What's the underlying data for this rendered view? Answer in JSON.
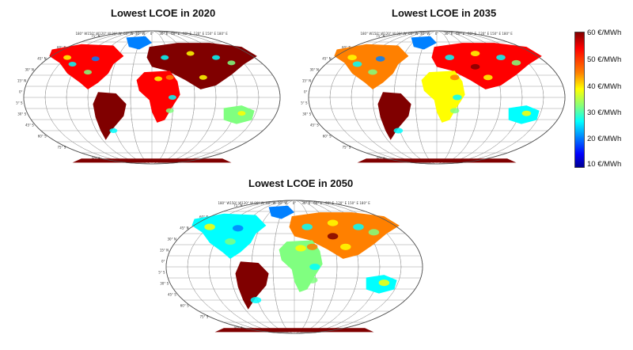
{
  "figure": {
    "panels": [
      {
        "title": "Lowest LCOE in 2020",
        "year": "2020"
      },
      {
        "title": "Lowest LCOE in 2035",
        "year": "2035"
      },
      {
        "title": "Lowest LCOE in 2050",
        "year": "2050"
      }
    ],
    "longitude_labels": [
      "180° W",
      "150° W",
      "120° W",
      "90° W",
      "60° W",
      "30° W",
      "0°",
      "30° E",
      "60° E",
      "90° E",
      "120° E",
      "150° E",
      "180° E"
    ],
    "latitude_labels": [
      "75° N",
      "60° N",
      "45° N",
      "30° N",
      "15° N",
      "0°",
      "15° S",
      "30° S",
      "45° S",
      "60° S",
      "75° S",
      "90° S"
    ]
  },
  "colorbar": {
    "labels": [
      "60 €/MWh",
      "50 €/MWh",
      "40 €/MWh",
      "30 €/MWh",
      "20 €/MWh",
      "10 €/MWh"
    ],
    "colors": [
      "#800000",
      "#ff0000",
      "#ff8000",
      "#ffff00",
      "#80ff80",
      "#00ffff",
      "#0080ff",
      "#0000ff",
      "#00008f"
    ]
  }
}
